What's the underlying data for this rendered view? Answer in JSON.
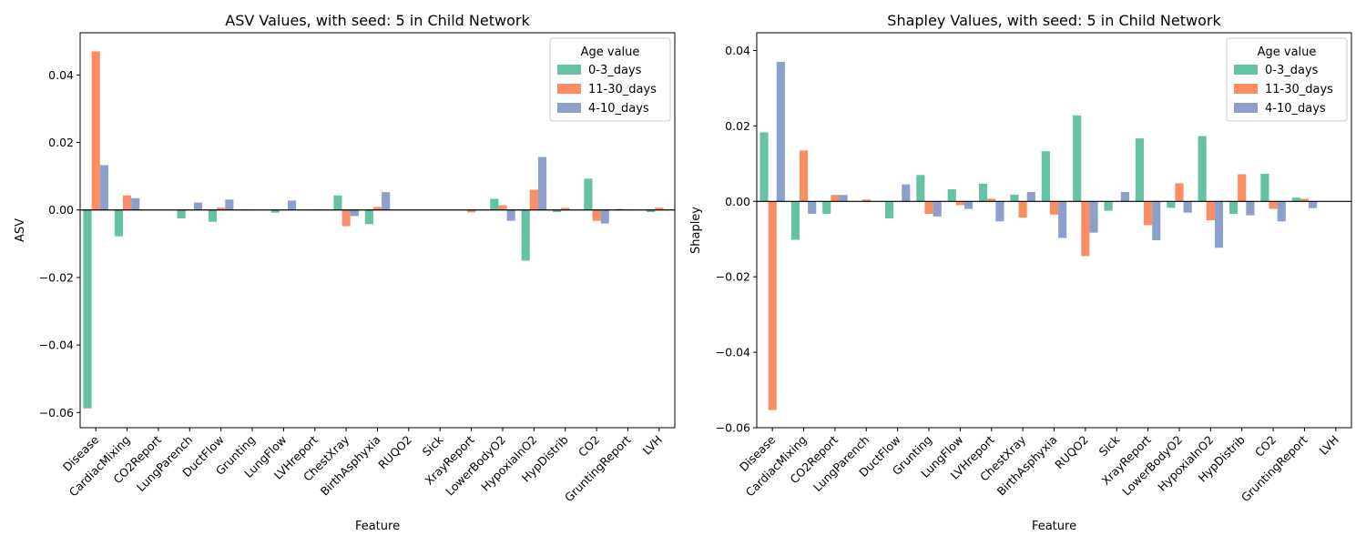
{
  "chart_data": [
    {
      "type": "bar",
      "title": "ASV Values, with seed: 5 in Child Network",
      "xlabel": "Feature",
      "ylabel": "ASV",
      "ylim": [
        -0.0645,
        0.0525
      ],
      "yticks": [
        -0.06,
        -0.04,
        -0.02,
        0.0,
        0.02,
        0.04
      ],
      "ytick_labels": [
        "−0.06",
        "−0.04",
        "−0.02",
        "0.00",
        "0.02",
        "0.04"
      ],
      "categories": [
        "Disease",
        "CardiacMixing",
        "CO2Report",
        "LungParench",
        "DuctFlow",
        "Grunting",
        "LungFlow",
        "LVHreport",
        "ChestXray",
        "BirthAsphyxia",
        "RUQO2",
        "Sick",
        "XrayReport",
        "LowerBodyO2",
        "HypoxiaInO2",
        "HypDistrib",
        "CO2",
        "GruntingReport",
        "LVH"
      ],
      "legend": {
        "title": "Age value",
        "position": "top-right"
      },
      "series": [
        {
          "name": "0-3_days",
          "color": "#66c2a5",
          "values": [
            -0.0588,
            -0.0078,
            0.0,
            -0.0025,
            -0.0035,
            0.0002,
            -0.0008,
            0.0,
            0.0043,
            -0.0042,
            0.0,
            0.0,
            0.0,
            0.0033,
            -0.015,
            -0.0006,
            0.0093,
            0.0003,
            -0.0006
          ]
        },
        {
          "name": "11-30_days",
          "color": "#fc8d62",
          "values": [
            0.047,
            0.0043,
            0.0,
            0.0,
            0.0007,
            0.0001,
            0.0,
            0.0002,
            -0.0048,
            0.0009,
            0.0,
            0.0,
            -0.0007,
            0.0014,
            0.006,
            0.0006,
            -0.0032,
            0.0001,
            0.0007
          ]
        },
        {
          "name": "4-10_days",
          "color": "#8da0cb",
          "values": [
            0.0133,
            0.0035,
            0.0,
            0.0022,
            0.0031,
            0.0,
            0.0028,
            0.0,
            -0.0018,
            0.0053,
            0.0,
            0.0,
            0.0,
            -0.0032,
            0.0157,
            0.0,
            -0.004,
            0.0,
            0.0
          ]
        }
      ]
    },
    {
      "type": "bar",
      "title": "Shapley Values, with seed: 5 in Child Network",
      "xlabel": "Feature",
      "ylabel": "Shapley",
      "ylim": [
        -0.06,
        0.0447
      ],
      "yticks": [
        -0.06,
        -0.04,
        -0.02,
        0.0,
        0.02,
        0.04
      ],
      "ytick_labels": [
        "−0.06",
        "−0.04",
        "−0.02",
        "0.00",
        "0.02",
        "0.04"
      ],
      "categories": [
        "Disease",
        "CardiacMixing",
        "CO2Report",
        "LungParench",
        "DuctFlow",
        "Grunting",
        "LungFlow",
        "LVHreport",
        "ChestXray",
        "BirthAsphyxia",
        "RUQO2",
        "Sick",
        "XrayReport",
        "LowerBodyO2",
        "HypoxiaInO2",
        "HypDistrib",
        "CO2",
        "GruntingReport",
        "LVH"
      ],
      "legend": {
        "title": "Age value",
        "position": "top-right"
      },
      "series": [
        {
          "name": "0-3_days",
          "color": "#66c2a5",
          "values": [
            0.0183,
            -0.0102,
            -0.0033,
            0.0,
            -0.0045,
            0.007,
            0.0032,
            0.0047,
            0.0018,
            0.0133,
            0.0228,
            -0.0025,
            0.0167,
            -0.0017,
            0.0173,
            -0.0033,
            0.0073,
            0.001,
            0.0
          ]
        },
        {
          "name": "11-30_days",
          "color": "#fc8d62",
          "values": [
            -0.0553,
            0.0135,
            0.0017,
            0.0005,
            0.0,
            -0.0033,
            -0.001,
            0.0007,
            -0.0043,
            -0.0035,
            -0.0145,
            0.0,
            -0.0063,
            0.0048,
            -0.005,
            0.0072,
            -0.002,
            0.0007,
            0.0
          ]
        },
        {
          "name": "4-10_days",
          "color": "#8da0cb",
          "values": [
            0.037,
            -0.0033,
            0.0017,
            0.0,
            0.0045,
            -0.004,
            -0.002,
            -0.0053,
            0.0025,
            -0.0097,
            -0.0083,
            0.0025,
            -0.0103,
            -0.003,
            -0.0123,
            -0.0037,
            -0.0053,
            -0.0018,
            0.0
          ]
        }
      ]
    }
  ]
}
